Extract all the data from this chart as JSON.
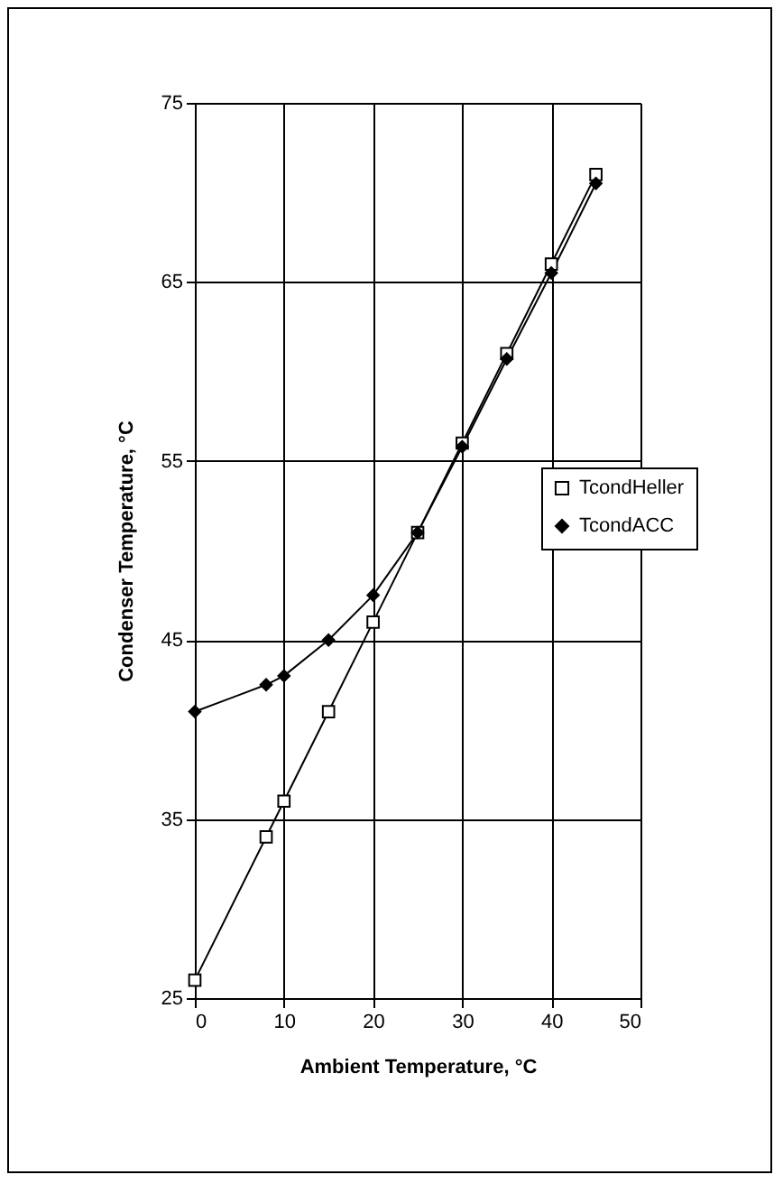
{
  "chart_data": {
    "type": "line",
    "xlabel": "Ambient Temperature, °C",
    "ylabel": "Condenser Temperature, °C",
    "x": [
      0,
      8,
      10,
      15,
      20,
      25,
      30,
      35,
      40,
      45
    ],
    "series": [
      {
        "name": "TcondHeller",
        "color": "#000000",
        "marker": "square",
        "values": [
          26,
          34,
          36,
          41,
          46,
          51,
          56,
          61,
          66,
          71
        ]
      },
      {
        "name": "TcondACC",
        "color": "#000000",
        "marker": "diamond",
        "values": [
          41,
          42.5,
          43,
          45,
          47.5,
          51,
          55.8,
          60.7,
          65.5,
          70.5
        ]
      }
    ],
    "xlim": [
      0,
      50
    ],
    "xticks": [
      0,
      10,
      20,
      30,
      40,
      50
    ],
    "ylim": [
      25,
      75
    ],
    "yticks": [
      25,
      35,
      45,
      55,
      65,
      75
    ],
    "grid": true,
    "legend": "right",
    "line_style": "solid"
  }
}
